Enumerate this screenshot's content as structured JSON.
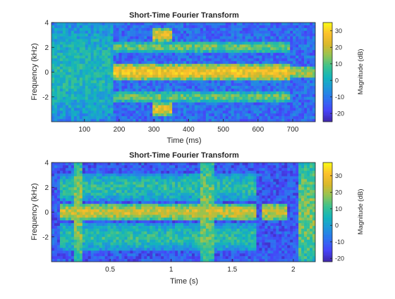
{
  "chart_data": [
    {
      "type": "heatmap",
      "title": "Short-Time Fourier Transform",
      "xlabel": "Time (ms)",
      "ylabel": "Frequency (kHz)",
      "xlim": [
        5,
        765
      ],
      "ylim": [
        -4,
        4
      ],
      "xticks": [
        100,
        200,
        300,
        400,
        500,
        600,
        700
      ],
      "xtick_labels": [
        "100",
        "200",
        "300",
        "400",
        "500",
        "600",
        "700"
      ],
      "yticks": [
        -2,
        0,
        2,
        4
      ],
      "ytick_labels": [
        "-2",
        "0",
        "2",
        "4"
      ],
      "colorbar": {
        "label": "Magnitude (dB)",
        "range": [
          -25,
          35
        ],
        "ticks": [
          -20,
          -10,
          0,
          10,
          20,
          30
        ],
        "tick_labels": [
          "-20",
          "-10",
          "0",
          "10",
          "20",
          "30"
        ]
      },
      "colormap": [
        "#3e26a8",
        "#4743f8",
        "#2f6ff1",
        "#1f95db",
        "#13b4bc",
        "#3ac28f",
        "#92c452",
        "#d9b82a",
        "#fdc12c",
        "#f9fb15"
      ],
      "regions": [
        {
          "t_start": 5,
          "t_end": 180,
          "f_center": 0,
          "f_halfwidth": 4,
          "level_db": 3
        },
        {
          "t_start": 140,
          "t_end": 180,
          "f_center": 0,
          "f_halfwidth": 4,
          "level_db": -20
        },
        {
          "t_start": 180,
          "t_end": 690,
          "f_center": 0,
          "f_halfwidth": 0.5,
          "level_db": 26
        },
        {
          "t_start": 180,
          "t_end": 690,
          "f_center": 2.0,
          "f_halfwidth": 0.35,
          "level_db": 12
        },
        {
          "t_start": 180,
          "t_end": 690,
          "f_center": -2.0,
          "f_halfwidth": 0.35,
          "level_db": 12
        },
        {
          "t_start": 300,
          "t_end": 350,
          "f_center": 3.0,
          "f_halfwidth": 0.4,
          "level_db": 24
        },
        {
          "t_start": 300,
          "t_end": 350,
          "f_center": -3.0,
          "f_halfwidth": 0.4,
          "level_db": 24
        },
        {
          "t_start": 690,
          "t_end": 765,
          "f_center": 0,
          "f_halfwidth": 0.4,
          "level_db": 18
        }
      ]
    },
    {
      "type": "heatmap",
      "title": "Short-Time Fourier Transform",
      "xlabel": "Time (s)",
      "ylabel": "Frequency (kHz)",
      "xlim": [
        0.02,
        2.18
      ],
      "ylim": [
        -4,
        4
      ],
      "xticks": [
        0.5,
        1,
        1.5,
        2
      ],
      "xtick_labels": [
        "0.5",
        "1",
        "1.5",
        "2"
      ],
      "yticks": [
        -2,
        0,
        2,
        4
      ],
      "ytick_labels": [
        "-2",
        "0",
        "2",
        "4"
      ],
      "colorbar": {
        "label": "Magnitude (dB)",
        "range": [
          -22,
          38
        ],
        "ticks": [
          -20,
          -10,
          0,
          10,
          20,
          30
        ],
        "tick_labels": [
          "-20",
          "-10",
          "0",
          "10",
          "20",
          "30"
        ]
      },
      "colormap": [
        "#3e26a8",
        "#4743f8",
        "#2f6ff1",
        "#1f95db",
        "#13b4bc",
        "#3ac28f",
        "#92c452",
        "#d9b82a",
        "#fdc12c",
        "#f9fb15"
      ],
      "regions": [
        {
          "t_start": 0.1,
          "t_end": 1.7,
          "f_center": 0,
          "f_halfwidth": 0.5,
          "level_db": 24
        },
        {
          "t_start": 0.1,
          "t_end": 1.7,
          "f_center": 2.0,
          "f_halfwidth": 1.0,
          "level_db": 8
        },
        {
          "t_start": 0.1,
          "t_end": 1.7,
          "f_center": -2.0,
          "f_halfwidth": 1.0,
          "level_db": 8
        },
        {
          "t_start": 0.2,
          "t_end": 0.27,
          "f_center": 0,
          "f_halfwidth": 4,
          "level_db": 18
        },
        {
          "t_start": 1.23,
          "t_end": 1.35,
          "f_center": 0,
          "f_halfwidth": 4,
          "level_db": 16
        },
        {
          "t_start": 1.75,
          "t_end": 1.95,
          "f_center": 0,
          "f_halfwidth": 0.6,
          "level_db": 22
        },
        {
          "t_start": 2.05,
          "t_end": 2.18,
          "f_center": 0,
          "f_halfwidth": 4,
          "level_db": 16
        }
      ]
    }
  ]
}
